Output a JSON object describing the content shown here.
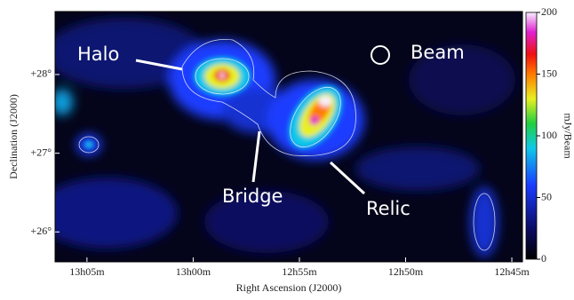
{
  "chart_data": {
    "type": "image",
    "xlabel": "Right Ascension (J2000)",
    "ylabel": "Declination (J2000)",
    "xlim": [
      786.5,
      764.5
    ],
    "xticks": [
      {
        "value": 785,
        "label": "13h05m"
      },
      {
        "value": 780,
        "label": "13h00m"
      },
      {
        "value": 775,
        "label": "12h55m"
      },
      {
        "value": 770,
        "label": "12h50m"
      },
      {
        "value": 765,
        "label": "12h45m"
      }
    ],
    "ylim": [
      25.62,
      28.8
    ],
    "yticks": [
      {
        "value": 26,
        "label": "+26°"
      },
      {
        "value": 27,
        "label": "+27°"
      },
      {
        "value": 28,
        "label": "+28°"
      }
    ],
    "colorbar": {
      "label": "mJy/Beam",
      "lim": [
        0,
        200
      ],
      "ticks": [
        0,
        50,
        100,
        150,
        200
      ]
    },
    "annotations": [
      "Halo",
      "Bridge",
      "Relic",
      "Beam"
    ]
  }
}
